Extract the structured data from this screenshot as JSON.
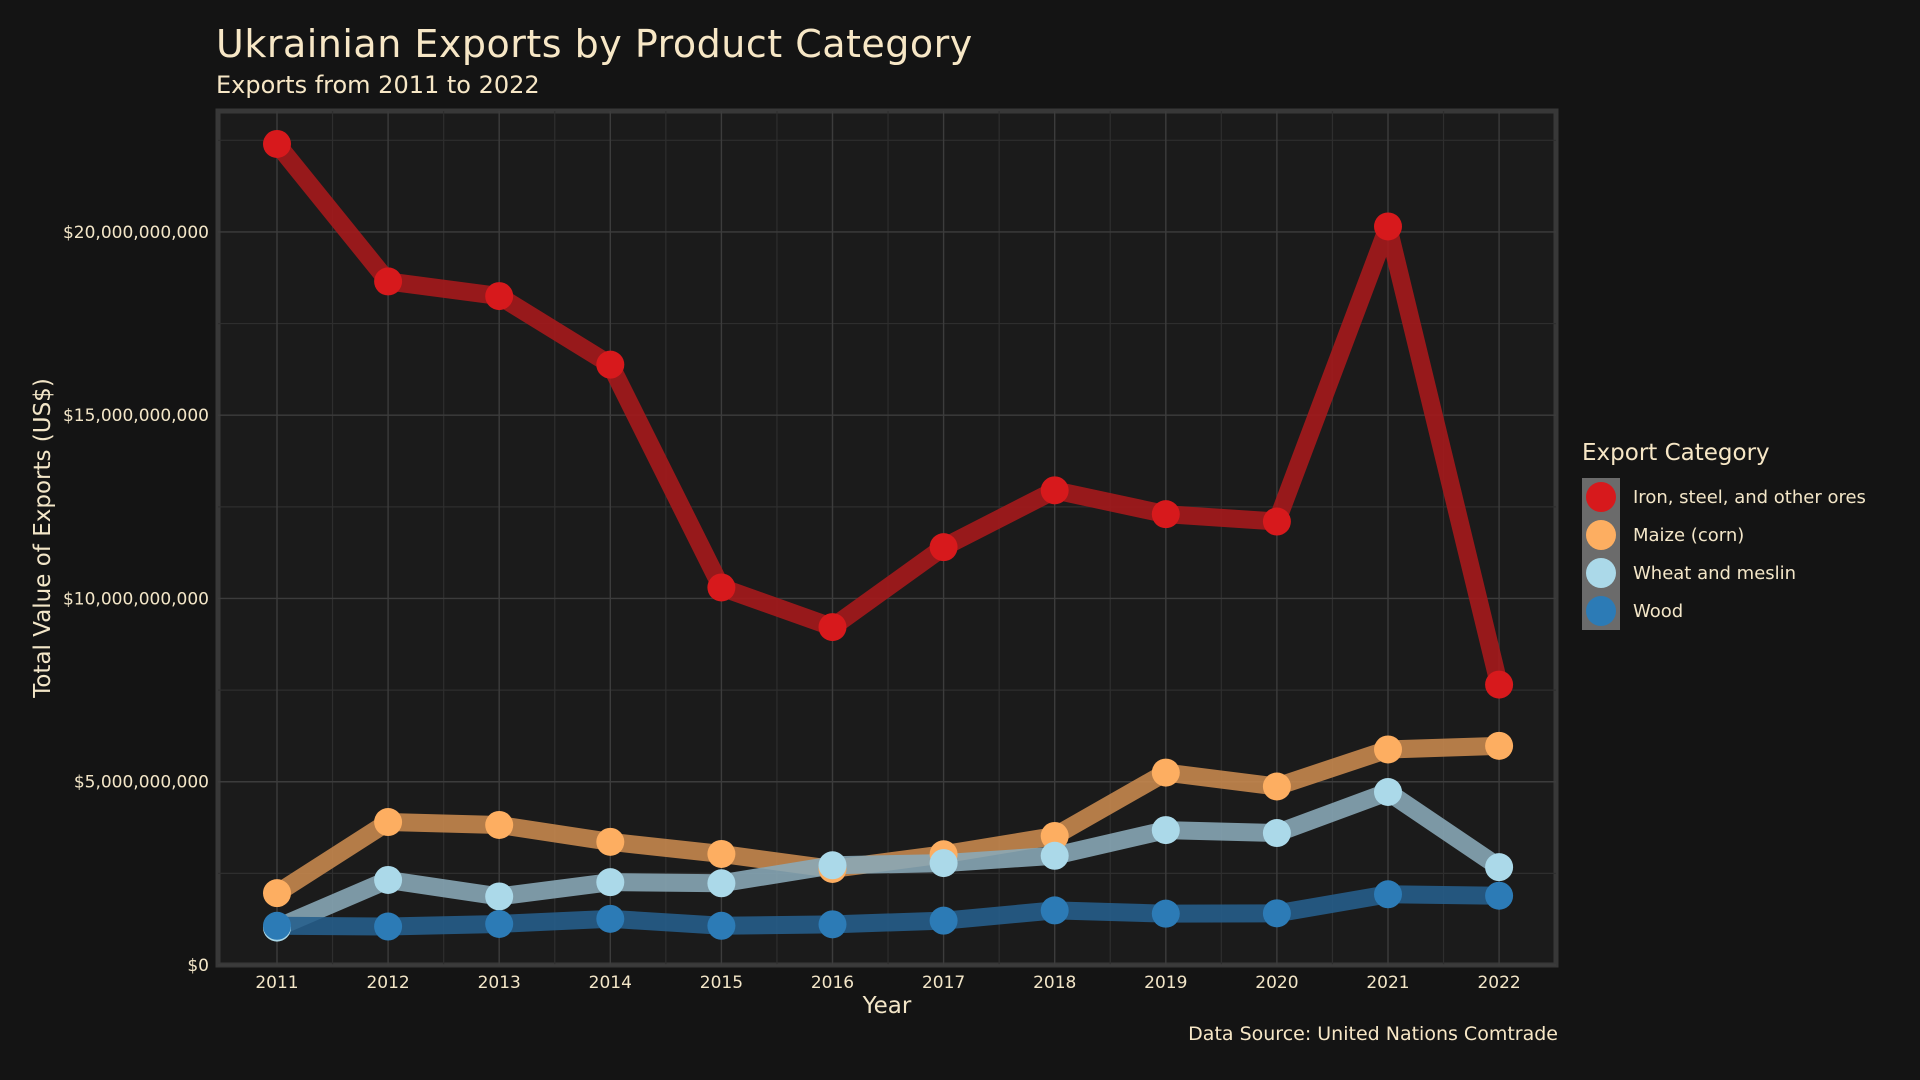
{
  "title": "Ukrainian Exports by Product Category",
  "subtitle": "Exports from 2011 to 2022",
  "caption": "Data Source: United Nations Comtrade",
  "legend_title": "Export Category",
  "chart_data": {
    "type": "line",
    "xlabel": "Year",
    "ylabel": "Total Value of Exports (US$)",
    "categories": [
      "2011",
      "2012",
      "2013",
      "2014",
      "2015",
      "2016",
      "2017",
      "2018",
      "2019",
      "2020",
      "2021",
      "2022"
    ],
    "ylim": [
      0,
      23300000000
    ],
    "y_ticks": [
      0,
      5000000000,
      10000000000,
      15000000000,
      20000000000
    ],
    "y_tick_labels": [
      "$0",
      "$5,000,000,000",
      "$10,000,000,000",
      "$15,000,000,000",
      "$20,000,000,000"
    ],
    "grid": true,
    "legend_position": "right",
    "series": [
      {
        "name": "Iron, steel, and other ores",
        "line_color": "#a8191b",
        "point_color": "#d7191c",
        "values": [
          22400000000,
          18650000000,
          18250000000,
          16380000000,
          10300000000,
          9220000000,
          11400000000,
          12950000000,
          12300000000,
          12100000000,
          20150000000,
          7650000000
        ]
      },
      {
        "name": "Maize (corn)",
        "line_color": "#c98a4f",
        "point_color": "#fdae61",
        "values": [
          1960000000,
          3900000000,
          3820000000,
          3360000000,
          3030000000,
          2620000000,
          3020000000,
          3520000000,
          5250000000,
          4870000000,
          5880000000,
          5980000000
        ]
      },
      {
        "name": "Wheat and meslin",
        "line_color": "#8aaab8",
        "point_color": "#abd9e9",
        "values": [
          1020000000,
          2320000000,
          1870000000,
          2260000000,
          2230000000,
          2720000000,
          2780000000,
          2980000000,
          3680000000,
          3600000000,
          4720000000,
          2670000000
        ]
      },
      {
        "name": "Wood",
        "line_color": "#255f8c",
        "point_color": "#2c7bb6",
        "values": [
          1070000000,
          1050000000,
          1120000000,
          1260000000,
          1070000000,
          1110000000,
          1210000000,
          1490000000,
          1400000000,
          1410000000,
          1930000000,
          1890000000
        ]
      }
    ]
  }
}
